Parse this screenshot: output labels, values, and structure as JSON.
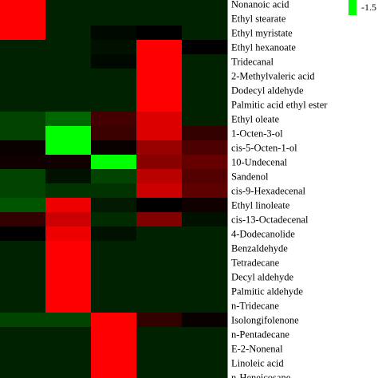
{
  "chart_data": {
    "type": "heatmap",
    "rows": [
      "Nonanoic acid",
      "Ethyl stearate",
      "Ethyl myristate",
      "Ethyl hexanoate",
      "Tridecanal",
      "2-Methylvaleric acid",
      "Dodecyl aldehyde",
      "Palmitic acid ethyl ester",
      "Ethyl oleate",
      "1-Octen-3-ol",
      "cis-5-Octen-1-ol",
      "10-Undecenal",
      "Sandenol",
      "cis-9-Hexadecenal",
      "Ethyl linoleate",
      "cis-13-Octadecenal",
      "4-Dodecanolide",
      "Benzaldehyde",
      "Tetradecane",
      "Decyl aldehyde",
      "Palmitic aldehyde",
      "n-Tridecane",
      "Isolongifolenone",
      "n-Pentadecane",
      "E-2-Nonenal",
      "Linoleic acid",
      "n-Heneicosane"
    ],
    "n_columns": 5,
    "values": [
      [
        1.5,
        -0.2,
        -0.2,
        -0.2,
        -0.2
      ],
      [
        1.5,
        -0.2,
        -0.2,
        -0.2,
        -0.2
      ],
      [
        1.5,
        -0.2,
        -0.05,
        0.0,
        -0.2
      ],
      [
        -0.2,
        -0.2,
        -0.1,
        1.5,
        0.0
      ],
      [
        -0.2,
        -0.2,
        -0.05,
        1.5,
        -0.2
      ],
      [
        -0.2,
        -0.2,
        -0.2,
        1.5,
        -0.2
      ],
      [
        -0.2,
        -0.2,
        -0.2,
        1.5,
        -0.2
      ],
      [
        -0.2,
        -0.2,
        -0.2,
        1.5,
        -0.2
      ],
      [
        -0.4,
        -0.6,
        0.4,
        1.3,
        -0.2
      ],
      [
        -0.4,
        -1.5,
        0.35,
        1.3,
        0.3
      ],
      [
        0.05,
        -1.5,
        0.05,
        0.9,
        0.45
      ],
      [
        0.1,
        0.1,
        -1.5,
        0.8,
        0.6
      ],
      [
        -0.4,
        -0.1,
        -0.4,
        1.1,
        0.5
      ],
      [
        -0.4,
        -0.3,
        -0.3,
        1.2,
        0.55
      ],
      [
        -0.5,
        1.4,
        -0.15,
        0.0,
        0.1
      ],
      [
        0.3,
        1.2,
        -0.25,
        0.75,
        -0.1
      ],
      [
        0.0,
        1.4,
        -0.1,
        -0.2,
        -0.2
      ],
      [
        -0.2,
        1.5,
        -0.2,
        -0.2,
        -0.2
      ],
      [
        -0.2,
        1.5,
        -0.2,
        -0.2,
        -0.2
      ],
      [
        -0.2,
        1.5,
        -0.2,
        -0.2,
        -0.2
      ],
      [
        -0.2,
        1.5,
        -0.2,
        -0.2,
        -0.2
      ],
      [
        -0.2,
        1.5,
        -0.2,
        -0.2,
        -0.2
      ],
      [
        -0.4,
        -0.4,
        1.5,
        0.3,
        0.05
      ],
      [
        -0.2,
        -0.2,
        1.5,
        -0.2,
        -0.2
      ],
      [
        -0.2,
        -0.2,
        1.5,
        -0.2,
        -0.2
      ],
      [
        -0.2,
        -0.2,
        1.5,
        -0.2,
        -0.2
      ],
      [
        -0.2,
        -0.2,
        1.5,
        -0.2,
        -0.2
      ]
    ],
    "color_range": [
      -1.5,
      1.5
    ],
    "colors": {
      "low": "#00ff00",
      "mid": "#000000",
      "high": "#ff0000"
    },
    "legend": {
      "visible_tick": "-1.5",
      "placement": "top-right"
    },
    "grid": false
  }
}
